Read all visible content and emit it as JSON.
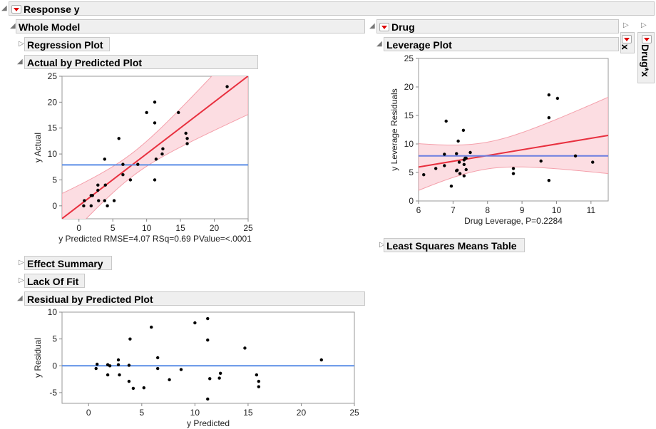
{
  "headers": {
    "response": "Response y",
    "whole_model": "Whole Model",
    "regression_plot": "Regression Plot",
    "actual_by_predicted": "Actual by Predicted Plot",
    "effect_summary": "Effect Summary",
    "lack_of_fit": "Lack Of Fit",
    "residual_by_predicted": "Residual by Predicted Plot",
    "drug": "Drug",
    "leverage_plot": "Leverage Plot",
    "lsmeans": "Least Squares Means Table",
    "x_tab": "x",
    "drugx_tab": "Drug*x"
  },
  "colors": {
    "fit_line": "#e8303f",
    "band": "#fcdde2",
    "band_edge": "#f4a0ab",
    "mean_line": "#5b8ee6",
    "mean_line_lev": "#6a7ee0"
  },
  "chart_data": [
    {
      "type": "scatter",
      "name": "actual-by-predicted",
      "xlabel": "y Predicted RMSE=4.07 RSq=0.69 PValue=<.0001",
      "ylabel": "y Actual",
      "xlim": [
        -2.5,
        25
      ],
      "ylim": [
        -2.5,
        25
      ],
      "xticks": [
        0,
        5,
        10,
        15,
        20,
        25
      ],
      "yticks": [
        0,
        5,
        10,
        15,
        20,
        25
      ],
      "mean": 7.9,
      "points": [
        [
          0.7,
          0
        ],
        [
          0.8,
          1
        ],
        [
          1.8,
          2
        ],
        [
          2,
          2
        ],
        [
          1.8,
          0
        ],
        [
          2.8,
          3
        ],
        [
          2.8,
          4
        ],
        [
          2.9,
          1
        ],
        [
          3.8,
          1
        ],
        [
          3.9,
          4
        ],
        [
          3.8,
          9
        ],
        [
          4.2,
          0
        ],
        [
          5.2,
          1
        ],
        [
          5.9,
          13
        ],
        [
          6.5,
          8
        ],
        [
          6.5,
          6
        ],
        [
          7.6,
          5
        ],
        [
          8.7,
          8
        ],
        [
          10,
          18
        ],
        [
          11.2,
          20
        ],
        [
          11.2,
          16
        ],
        [
          11.2,
          5
        ],
        [
          11.4,
          9
        ],
        [
          12.4,
          11
        ],
        [
          12.3,
          10
        ],
        [
          14.7,
          18
        ],
        [
          15.8,
          14
        ],
        [
          16,
          13
        ],
        [
          16,
          12
        ],
        [
          21.9,
          23
        ]
      ]
    },
    {
      "type": "scatter",
      "name": "leverage",
      "xlabel": "Drug Leverage, P=0.2284",
      "ylabel": "y Leverage Residuals",
      "xlim": [
        6,
        11.5
      ],
      "ylim": [
        0,
        25
      ],
      "xticks": [
        6,
        7,
        8,
        9,
        10,
        11
      ],
      "yticks": [
        0,
        5,
        10,
        15,
        20,
        25
      ],
      "mean": 7.9,
      "points": [
        [
          6.15,
          4.6
        ],
        [
          6.5,
          5.7
        ],
        [
          6.75,
          6.2
        ],
        [
          6.75,
          8.2
        ],
        [
          6.8,
          14
        ],
        [
          6.95,
          2.6
        ],
        [
          7.1,
          8.3
        ],
        [
          7.1,
          5.3
        ],
        [
          7.12,
          5.4
        ],
        [
          7.15,
          10.5
        ],
        [
          7.18,
          6.8
        ],
        [
          7.2,
          4.8
        ],
        [
          7.3,
          12.4
        ],
        [
          7.32,
          4.4
        ],
        [
          7.32,
          6.4
        ],
        [
          7.32,
          7.2
        ],
        [
          7.35,
          7.5
        ],
        [
          7.38,
          5.5
        ],
        [
          7.38,
          7.5
        ],
        [
          7.5,
          8.5
        ],
        [
          8.75,
          5.7
        ],
        [
          8.75,
          4.8
        ],
        [
          9.55,
          7.0
        ],
        [
          9.78,
          18.6
        ],
        [
          9.78,
          14.6
        ],
        [
          9.78,
          3.6
        ],
        [
          10.03,
          18
        ],
        [
          10.55,
          7.9
        ],
        [
          11.05,
          6.8
        ]
      ]
    },
    {
      "type": "scatter",
      "name": "residual-by-predicted",
      "xlabel": "y Predicted",
      "ylabel": "y Residual",
      "xlim": [
        -2.5,
        25
      ],
      "ylim": [
        -7,
        10
      ],
      "xticks": [
        0,
        5,
        10,
        15,
        20,
        25
      ],
      "yticks": [
        -5,
        0,
        5,
        10
      ],
      "zero": 0,
      "points": [
        [
          0.7,
          -0.5
        ],
        [
          0.8,
          0.3
        ],
        [
          1.8,
          0.2
        ],
        [
          2,
          0
        ],
        [
          1.8,
          -1.7
        ],
        [
          2.8,
          1.1
        ],
        [
          2.8,
          0.2
        ],
        [
          2.9,
          -1.7
        ],
        [
          3.8,
          -2.9
        ],
        [
          3.9,
          5
        ],
        [
          3.8,
          0.1
        ],
        [
          4.2,
          -4.2
        ],
        [
          5.2,
          -4.1
        ],
        [
          5.9,
          7.2
        ],
        [
          6.5,
          1.5
        ],
        [
          6.5,
          -0.5
        ],
        [
          7.6,
          -2.6
        ],
        [
          8.7,
          -0.7
        ],
        [
          10,
          8
        ],
        [
          11.2,
          8.8
        ],
        [
          11.2,
          4.8
        ],
        [
          11.2,
          -6.2
        ],
        [
          11.4,
          -2.4
        ],
        [
          12.4,
          -1.4
        ],
        [
          12.3,
          -2.3
        ],
        [
          14.7,
          3.3
        ],
        [
          15.8,
          -1.7
        ],
        [
          16,
          -2.9
        ],
        [
          16,
          -3.9
        ],
        [
          21.9,
          1.1
        ]
      ]
    }
  ]
}
